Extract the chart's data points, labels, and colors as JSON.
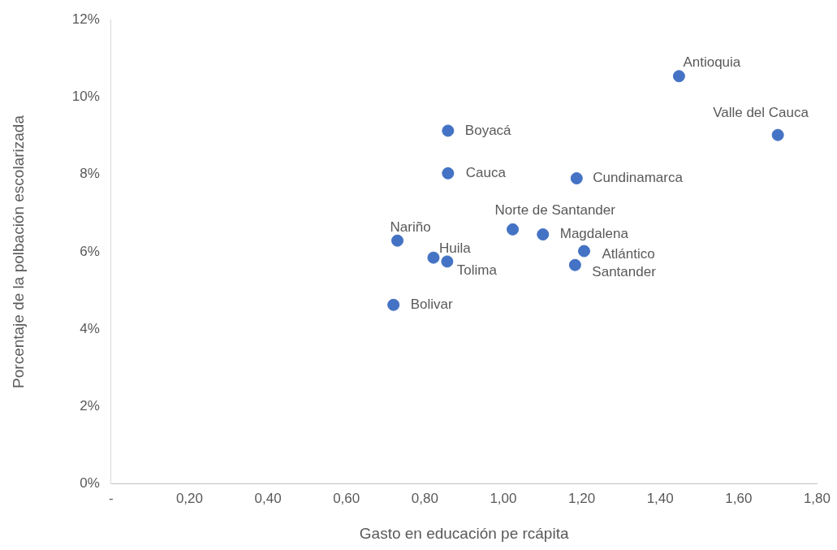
{
  "chart_data": {
    "type": "scatter",
    "xlabel": "Gasto en educación pe rcápita",
    "ylabel": "Porcentaje de la polbación escolarizada",
    "x": [
      1.448,
      1.7,
      0.859,
      0.859,
      1.187,
      1.024,
      1.101,
      0.73,
      0.822,
      0.857,
      1.206,
      1.183,
      0.72
    ],
    "series": [
      {
        "color": "#4472c4",
        "values": [
          10.54,
          9.02,
          9.13,
          8.03,
          7.9,
          6.58,
          6.45,
          6.29,
          5.85,
          5.75,
          6.02,
          5.66,
          4.63
        ]
      }
    ],
    "annotations": [
      {
        "text": "Antioquia",
        "x": 1.448,
        "y": 10.54
      },
      {
        "text": "Valle del Cauca",
        "x": 1.7,
        "y": 9.02
      },
      {
        "text": "Boyacá",
        "x": 0.859,
        "y": 9.13
      },
      {
        "text": "Cauca",
        "x": 0.859,
        "y": 8.03
      },
      {
        "text": "Cundinamarca",
        "x": 1.187,
        "y": 7.9
      },
      {
        "text": "Norte de Santander",
        "x": 1.024,
        "y": 6.58
      },
      {
        "text": "Magdalena",
        "x": 1.101,
        "y": 6.45
      },
      {
        "text": "Nariño",
        "x": 0.73,
        "y": 6.29
      },
      {
        "text": "Huila",
        "x": 0.822,
        "y": 5.85
      },
      {
        "text": "Tolima",
        "x": 0.857,
        "y": 5.75
      },
      {
        "text": "Atlántico",
        "x": 1.206,
        "y": 6.02
      },
      {
        "text": "Santander",
        "x": 1.183,
        "y": 5.66
      },
      {
        "text": "Bolivar",
        "x": 0.72,
        "y": 4.63
      }
    ],
    "xlim": [
      0,
      1.8
    ],
    "xticks": [
      {
        "value": 0,
        "label": "-"
      },
      {
        "value": 0.2,
        "label": "0,20"
      },
      {
        "value": 0.4,
        "label": "0,40"
      },
      {
        "value": 0.6,
        "label": "0,60"
      },
      {
        "value": 0.8,
        "label": "0,80"
      },
      {
        "value": 1.0,
        "label": "1,00"
      },
      {
        "value": 1.2,
        "label": "1,20"
      },
      {
        "value": 1.4,
        "label": "1,40"
      },
      {
        "value": 1.6,
        "label": "1,60"
      },
      {
        "value": 1.8,
        "label": "1,80"
      }
    ],
    "ylim": [
      0,
      12
    ],
    "yticks": [
      {
        "value": 0,
        "label": "0%"
      },
      {
        "value": 2,
        "label": "2%"
      },
      {
        "value": 4,
        "label": "4%"
      },
      {
        "value": 6,
        "label": "6%"
      },
      {
        "value": 8,
        "label": "8%"
      },
      {
        "value": 10,
        "label": "10%"
      },
      {
        "value": 12,
        "label": "12%"
      }
    ],
    "grid": false,
    "legend": false,
    "marker": "circle"
  }
}
